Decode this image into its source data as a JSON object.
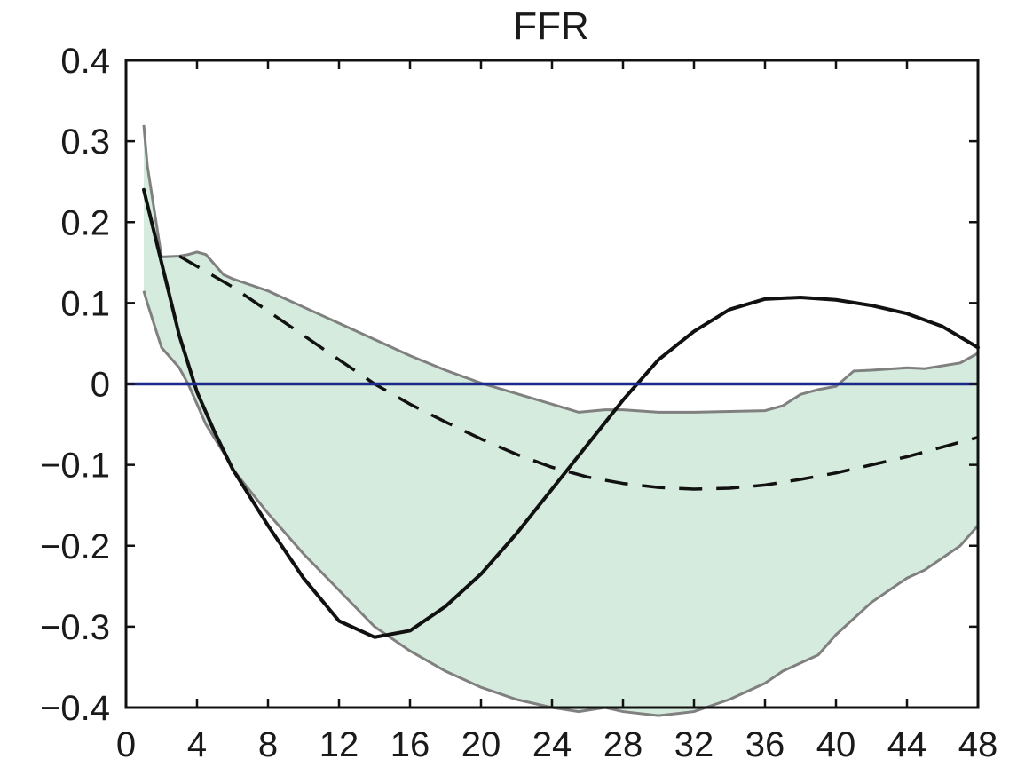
{
  "chart_data": {
    "type": "line",
    "title": "FFR",
    "xlabel": "",
    "ylabel": "",
    "xlim": [
      0,
      48
    ],
    "ylim": [
      -0.4,
      0.4
    ],
    "xticks": [
      0,
      4,
      8,
      12,
      16,
      20,
      24,
      28,
      32,
      36,
      40,
      44,
      48
    ],
    "yticks": [
      0.4,
      0.3,
      0.2,
      0.1,
      0,
      -0.1,
      -0.2,
      -0.3,
      -0.4
    ],
    "ytick_labels": [
      "0.4",
      "0.3",
      "0.2",
      "0.1",
      "0",
      "−0.1",
      "−0.2",
      "−0.3",
      "−0.4"
    ],
    "grid": false,
    "colors": {
      "band_fill": "#d5ebdd",
      "band_edge": "#808080",
      "solid_line": "#111111",
      "dashed_line": "#111111",
      "zero_line": "#1c2a8c",
      "axes": "#111111"
    },
    "band": {
      "x": [
        1,
        1.2,
        2,
        3,
        3.5,
        4,
        4.5,
        5.5,
        6,
        8,
        10,
        12,
        14,
        16,
        18,
        20,
        22,
        24,
        25.5,
        27,
        28,
        30,
        32,
        34,
        36,
        37,
        38,
        39,
        40,
        41,
        42,
        44,
        45,
        47,
        48
      ],
      "upper": [
        0.32,
        0.27,
        0.157,
        0.158,
        0.16,
        0.163,
        0.16,
        0.135,
        0.13,
        0.115,
        0.095,
        0.075,
        0.055,
        0.035,
        0.017,
        0.001,
        -0.012,
        -0.025,
        -0.035,
        -0.032,
        -0.032,
        -0.035,
        -0.035,
        -0.034,
        -0.033,
        -0.027,
        -0.013,
        -0.007,
        -0.003,
        0.016,
        0.017,
        0.02,
        0.019,
        0.026,
        0.038
      ],
      "lower": [
        0.115,
        0.1,
        0.045,
        0.02,
        0.0,
        -0.025,
        -0.05,
        -0.085,
        -0.105,
        -0.16,
        -0.21,
        -0.255,
        -0.3,
        -0.33,
        -0.355,
        -0.375,
        -0.39,
        -0.4,
        -0.405,
        -0.4,
        -0.405,
        -0.41,
        -0.405,
        -0.39,
        -0.37,
        -0.355,
        -0.345,
        -0.335,
        -0.31,
        -0.29,
        -0.27,
        -0.24,
        -0.23,
        -0.2,
        -0.175
      ]
    },
    "series": [
      {
        "style": "solid",
        "x": [
          1,
          2,
          3,
          4,
          5,
          6,
          8,
          10,
          12,
          14,
          16,
          18,
          20,
          22,
          24,
          26,
          28,
          30,
          32,
          34,
          36,
          38,
          40,
          42,
          44,
          46,
          48
        ],
        "y": [
          0.24,
          0.15,
          0.06,
          -0.01,
          -0.06,
          -0.105,
          -0.175,
          -0.24,
          -0.293,
          -0.313,
          -0.305,
          -0.275,
          -0.235,
          -0.185,
          -0.13,
          -0.075,
          -0.02,
          0.03,
          0.065,
          0.092,
          0.105,
          0.107,
          0.104,
          0.097,
          0.087,
          0.071,
          0.045
        ]
      },
      {
        "style": "dashed",
        "x": [
          3,
          6,
          8,
          10,
          12,
          14,
          16,
          18,
          20,
          22,
          24,
          26,
          28,
          30,
          32,
          34,
          36,
          38,
          40,
          42,
          44,
          46,
          48
        ],
        "y": [
          0.158,
          0.12,
          0.09,
          0.06,
          0.03,
          0.0,
          -0.025,
          -0.047,
          -0.068,
          -0.087,
          -0.103,
          -0.115,
          -0.123,
          -0.128,
          -0.13,
          -0.129,
          -0.125,
          -0.118,
          -0.11,
          -0.1,
          -0.09,
          -0.078,
          -0.066
        ]
      },
      {
        "style": "zero-line",
        "x": [
          0,
          48
        ],
        "y": [
          0,
          0
        ]
      }
    ]
  }
}
